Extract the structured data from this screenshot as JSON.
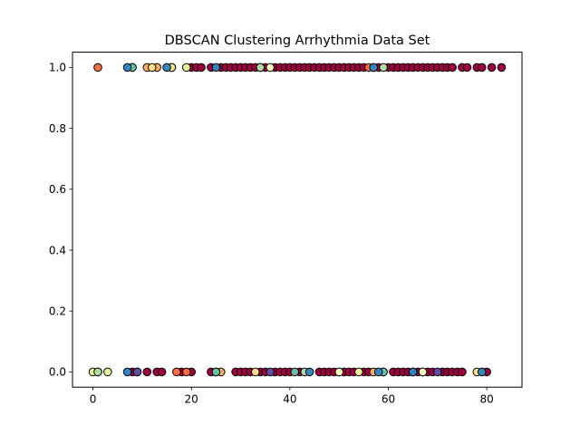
{
  "chart_data": {
    "type": "scatter",
    "title": "DBSCAN Clustering Arrhythmia Data Set",
    "xlabel": "",
    "ylabel": "",
    "xlim": [
      -4.15,
      87.15
    ],
    "ylim": [
      -0.05,
      1.05
    ],
    "x_ticks": [
      0,
      20,
      40,
      60,
      80
    ],
    "y_ticks": [
      0.0,
      0.2,
      0.4,
      0.6,
      0.8,
      1.0
    ],
    "x_tick_labels": [
      "0",
      "20",
      "40",
      "60",
      "80"
    ],
    "y_tick_labels": [
      "0.0",
      "0.2",
      "0.4",
      "0.6",
      "0.8",
      "1.0"
    ],
    "grid": false,
    "legend": "none",
    "colors": {
      "noise": "#9e0142",
      "orange": "#f46d43",
      "light_orange": "#fdae61",
      "pale_yellow": "#fee08b",
      "light_yellow": "#ffffbf",
      "light_green": "#e6f598",
      "green": "#abdda4",
      "teal": "#66c2a5",
      "blue": "#3288bd",
      "purple": "#5e4fa2",
      "marker_edge": "#000000"
    },
    "series": [
      {
        "color_key": "noise",
        "points": [
          [
            8,
            1
          ],
          [
            16,
            1
          ],
          [
            20,
            1
          ],
          [
            21,
            1
          ],
          [
            22,
            1
          ],
          [
            24,
            1
          ],
          [
            26,
            1
          ],
          [
            27,
            1
          ],
          [
            28,
            1
          ],
          [
            29,
            1
          ],
          [
            30,
            1
          ],
          [
            31,
            1
          ],
          [
            32,
            1
          ],
          [
            33,
            1
          ],
          [
            34,
            1
          ],
          [
            35,
            1
          ],
          [
            37,
            1
          ],
          [
            38,
            1
          ],
          [
            39,
            1
          ],
          [
            40,
            1
          ],
          [
            41,
            1
          ],
          [
            42,
            1
          ],
          [
            43,
            1
          ],
          [
            44,
            1
          ],
          [
            45,
            1
          ],
          [
            46,
            1
          ],
          [
            47,
            1
          ],
          [
            48,
            1
          ],
          [
            49,
            1
          ],
          [
            50,
            1
          ],
          [
            51,
            1
          ],
          [
            52,
            1
          ],
          [
            53,
            1
          ],
          [
            54,
            1
          ],
          [
            55,
            1
          ],
          [
            57,
            1
          ],
          [
            58,
            1
          ],
          [
            60,
            1
          ],
          [
            61,
            1
          ],
          [
            62,
            1
          ],
          [
            63,
            1
          ],
          [
            64,
            1
          ],
          [
            65,
            1
          ],
          [
            66,
            1
          ],
          [
            67,
            1
          ],
          [
            68,
            1
          ],
          [
            69,
            1
          ],
          [
            70,
            1
          ],
          [
            71,
            1
          ],
          [
            72,
            1
          ],
          [
            73,
            1
          ],
          [
            75,
            1
          ],
          [
            76,
            1
          ],
          [
            78,
            1
          ],
          [
            79,
            1
          ],
          [
            81,
            1
          ],
          [
            83,
            1
          ],
          [
            1,
            0
          ],
          [
            8,
            0
          ],
          [
            9,
            0
          ],
          [
            11,
            0
          ],
          [
            13,
            0
          ],
          [
            14,
            0
          ],
          [
            18,
            0
          ],
          [
            20,
            0
          ],
          [
            24,
            0
          ],
          [
            29,
            0
          ],
          [
            30,
            0
          ],
          [
            31,
            0
          ],
          [
            32,
            0
          ],
          [
            34,
            0
          ],
          [
            35,
            0
          ],
          [
            37,
            0
          ],
          [
            38,
            0
          ],
          [
            39,
            0
          ],
          [
            40,
            0
          ],
          [
            42,
            0
          ],
          [
            46,
            0
          ],
          [
            47,
            0
          ],
          [
            48,
            0
          ],
          [
            49,
            0
          ],
          [
            50,
            0
          ],
          [
            51,
            0
          ],
          [
            52,
            0
          ],
          [
            53,
            0
          ],
          [
            55,
            0
          ],
          [
            56,
            0
          ],
          [
            59,
            0
          ],
          [
            61,
            0
          ],
          [
            62,
            0
          ],
          [
            63,
            0
          ],
          [
            64,
            0
          ],
          [
            66,
            0
          ],
          [
            67,
            0
          ],
          [
            68,
            0
          ],
          [
            69,
            0
          ],
          [
            71,
            0
          ],
          [
            72,
            0
          ],
          [
            73,
            0
          ],
          [
            74,
            0
          ],
          [
            75,
            0
          ],
          [
            80,
            0
          ]
        ]
      },
      {
        "color_key": "orange",
        "points": [
          [
            1,
            1
          ],
          [
            56,
            1
          ],
          [
            17,
            0
          ],
          [
            19,
            0
          ]
        ]
      },
      {
        "color_key": "light_orange",
        "points": [
          [
            11,
            1
          ],
          [
            13,
            1
          ],
          [
            57,
            0
          ],
          [
            26,
            0
          ]
        ]
      },
      {
        "color_key": "pale_yellow",
        "points": [
          [
            16,
            1
          ],
          [
            12,
            1
          ],
          [
            33,
            0
          ],
          [
            78,
            0
          ]
        ]
      },
      {
        "color_key": "light_yellow",
        "points": [
          [
            36,
            1
          ],
          [
            67,
            0
          ],
          [
            50,
            0
          ]
        ]
      },
      {
        "color_key": "light_green",
        "points": [
          [
            19,
            1
          ],
          [
            0,
            0
          ],
          [
            3,
            0
          ],
          [
            54,
            0
          ]
        ]
      },
      {
        "color_key": "green",
        "points": [
          [
            34,
            1
          ],
          [
            59,
            1
          ],
          [
            1,
            0
          ],
          [
            25,
            0
          ],
          [
            43,
            0
          ]
        ]
      },
      {
        "color_key": "teal",
        "points": [
          [
            8,
            1
          ],
          [
            59,
            0
          ],
          [
            41,
            0
          ],
          [
            25,
            0
          ],
          [
            65,
            0
          ]
        ]
      },
      {
        "color_key": "blue",
        "points": [
          [
            7,
            1
          ],
          [
            15,
            1
          ],
          [
            25,
            1
          ],
          [
            57,
            1
          ],
          [
            7,
            0
          ],
          [
            44,
            0
          ],
          [
            58,
            0
          ],
          [
            79,
            0
          ],
          [
            65,
            0
          ]
        ]
      },
      {
        "color_key": "purple",
        "points": [
          [
            9,
            0
          ],
          [
            36,
            0
          ],
          [
            70,
            0
          ]
        ]
      }
    ]
  }
}
